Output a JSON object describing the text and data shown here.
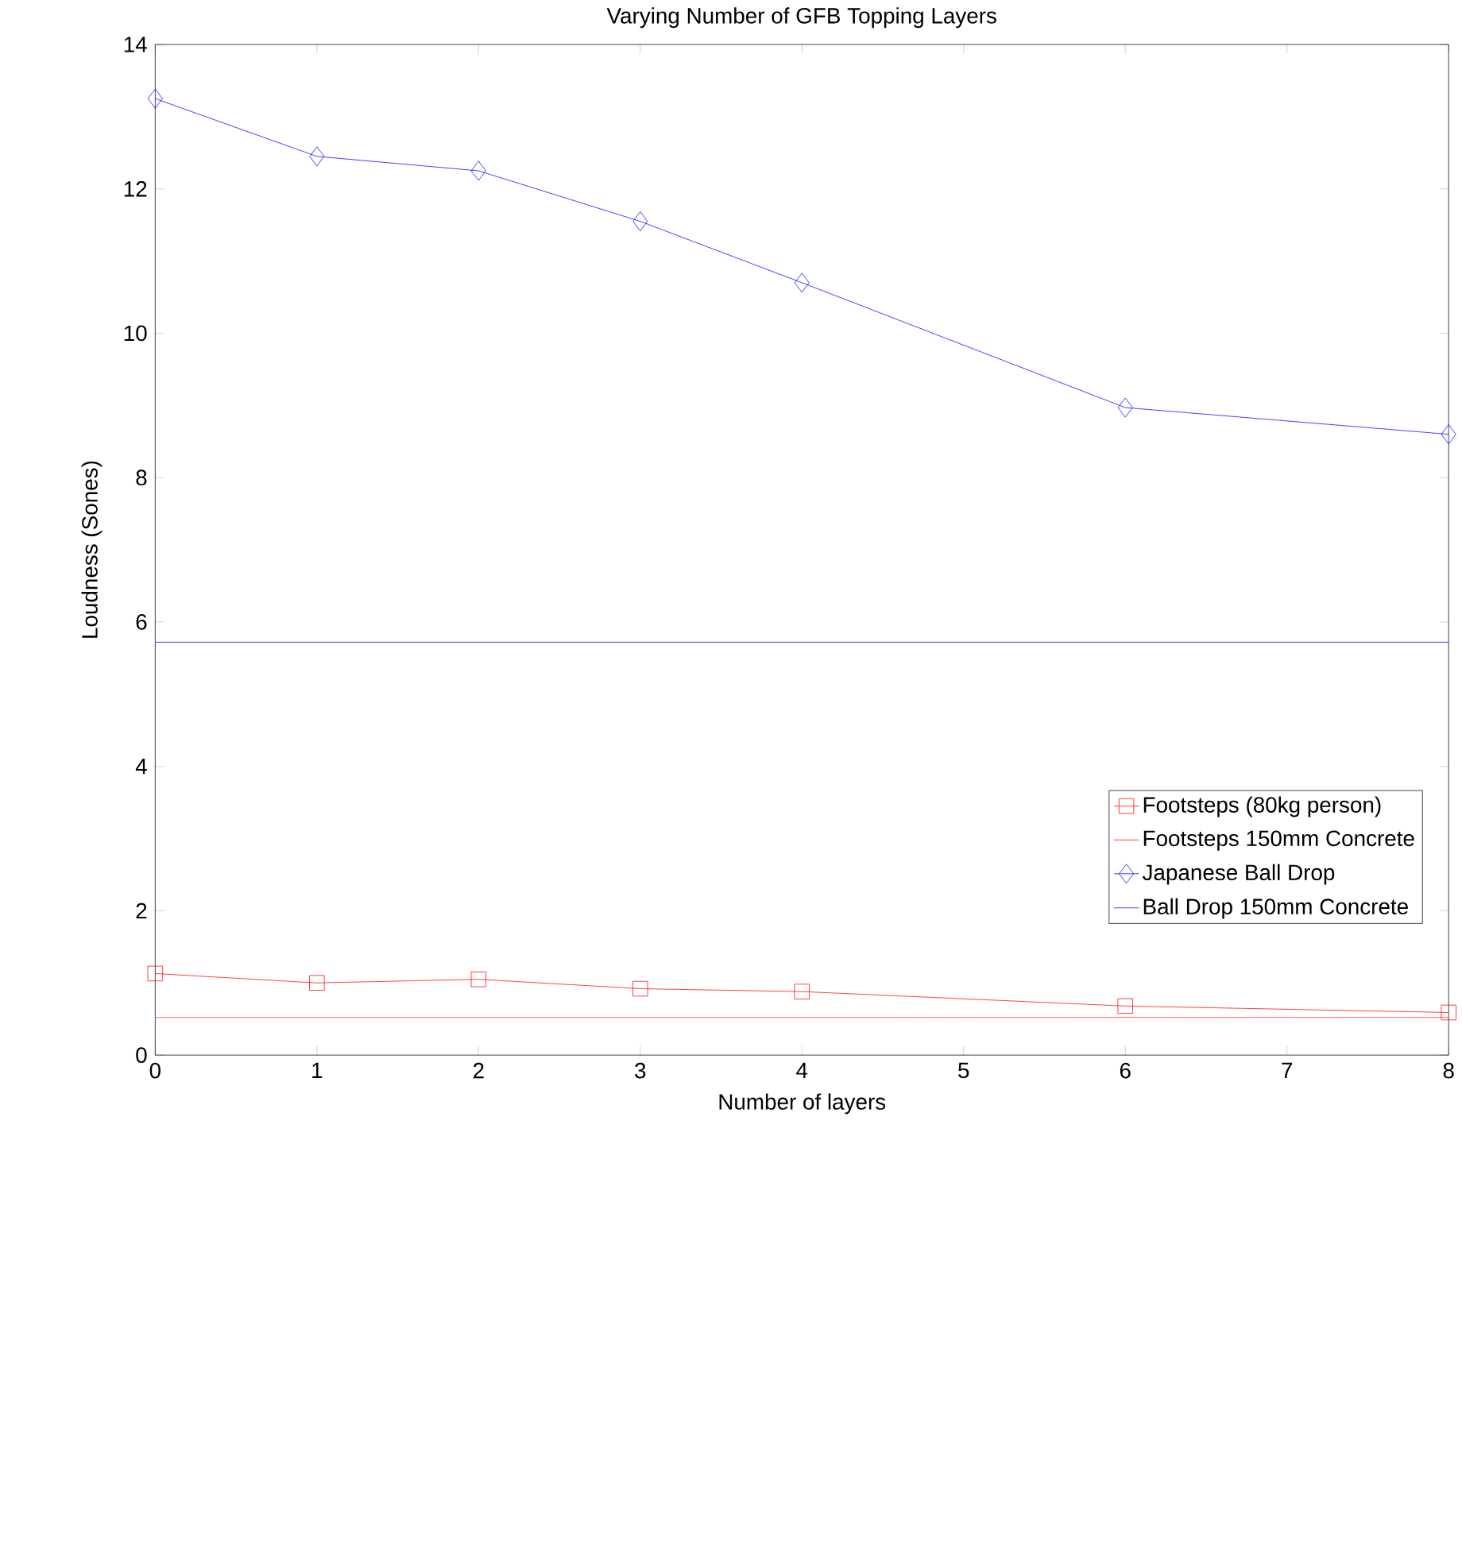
{
  "chart_data": {
    "type": "line",
    "title": "Varying Number of GFB Topping Layers",
    "xlabel": "Number of layers",
    "ylabel": "Loudness (Sones)",
    "xlim": [
      0,
      8
    ],
    "xticks": [
      0,
      1,
      2,
      3,
      4,
      5,
      6,
      7,
      8
    ],
    "ylim": [
      0,
      14
    ],
    "yticks": [
      0,
      2,
      4,
      6,
      8,
      10,
      12,
      14
    ],
    "grid": false,
    "legend": "bottom right",
    "series": [
      {
        "name": "Footsteps (80kg person)",
        "color": "#ff0000",
        "marker": "square",
        "x": [
          0,
          1,
          2,
          3,
          4,
          6,
          8
        ],
        "values": [
          1.13,
          1.0,
          1.05,
          0.92,
          0.88,
          0.68,
          0.59
        ]
      },
      {
        "name": "Footsteps 150mm Concrete",
        "color": "#ff0000",
        "marker": "none",
        "x": [
          0,
          8
        ],
        "values": [
          0.52,
          0.52
        ]
      },
      {
        "name": "Japanese Ball Drop",
        "color": "#0000ff",
        "marker": "diamond",
        "x": [
          0,
          1,
          2,
          3,
          4,
          6,
          8
        ],
        "values": [
          13.25,
          12.45,
          12.25,
          11.55,
          10.7,
          8.97,
          8.6
        ]
      },
      {
        "name": "Ball Drop 150mm Concrete",
        "color": "#0000ff",
        "marker": "none",
        "x": [
          0,
          8
        ],
        "values": [
          5.72,
          5.72
        ]
      }
    ]
  }
}
